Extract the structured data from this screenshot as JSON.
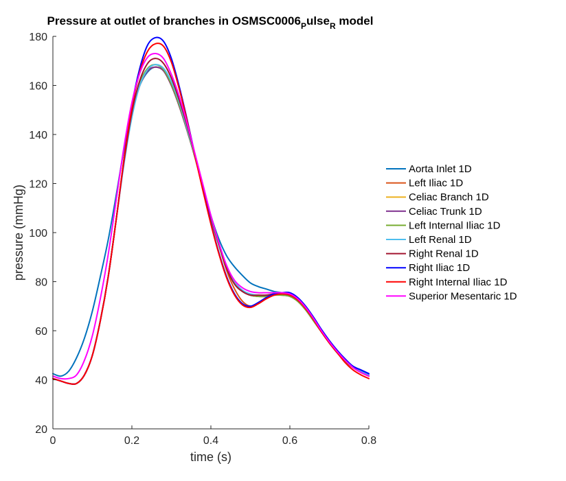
{
  "chart_data": {
    "type": "line",
    "title": {
      "main_before": "Pressure at outlet of branches in OSMSC0006",
      "sub1": "P",
      "mid": "ulse",
      "sub2": "R",
      "after": " model"
    },
    "xlabel": "time (s)",
    "ylabel": "pressure (mmHg)",
    "xlim": [
      0,
      0.8
    ],
    "ylim": [
      20,
      180
    ],
    "xticks": [
      0,
      0.2,
      0.4,
      0.6,
      0.8
    ],
    "xtick_labels": [
      "0",
      "0.2",
      "0.4",
      "0.6",
      "0.8"
    ],
    "yticks": [
      20,
      40,
      60,
      80,
      100,
      120,
      140,
      160,
      180
    ],
    "ytick_labels": [
      "20",
      "40",
      "60",
      "80",
      "100",
      "120",
      "140",
      "160",
      "180"
    ],
    "grid": false,
    "legend_position": "outside-right",
    "x": [
      0,
      0.02,
      0.04,
      0.06,
      0.08,
      0.1,
      0.12,
      0.14,
      0.16,
      0.18,
      0.2,
      0.22,
      0.24,
      0.26,
      0.28,
      0.3,
      0.32,
      0.34,
      0.36,
      0.38,
      0.4,
      0.42,
      0.44,
      0.46,
      0.48,
      0.5,
      0.52,
      0.54,
      0.56,
      0.58,
      0.6,
      0.62,
      0.64,
      0.66,
      0.68,
      0.7,
      0.72,
      0.74,
      0.76,
      0.78,
      0.8
    ],
    "series": [
      {
        "name": "Aorta Inlet 1D",
        "color": "#0072BD",
        "values": [
          42.5,
          41.5,
          43.5,
          49,
          57,
          68,
          82,
          97,
          115,
          134,
          150,
          160,
          165.5,
          167.5,
          166,
          161,
          153,
          143,
          131.5,
          119,
          107,
          97.5,
          90.5,
          86,
          82.5,
          79.5,
          78,
          77,
          76,
          75.5,
          74.5,
          72.5,
          69,
          64.5,
          59.5,
          55,
          51,
          48,
          45.5,
          44,
          42.5
        ]
      },
      {
        "name": "Left Iliac 1D",
        "color": "#D95319",
        "values": [
          40.5,
          39.5,
          38.5,
          38.5,
          42,
          50,
          64,
          82,
          105,
          129,
          148,
          160,
          166,
          167.5,
          166,
          160,
          151.5,
          141.5,
          130.5,
          118.5,
          106,
          95,
          84.5,
          77,
          72,
          70,
          71,
          73,
          74.5,
          75,
          74.5,
          72.5,
          69,
          64.5,
          59.5,
          55,
          51,
          47.5,
          45,
          43,
          41.5
        ]
      },
      {
        "name": "Celiac Branch 1D",
        "color": "#EDB120",
        "values": [
          40.5,
          39.5,
          38.5,
          38.5,
          42,
          50,
          64,
          82,
          105,
          129,
          148,
          160,
          166,
          167.5,
          166,
          160,
          151.5,
          141.5,
          130.5,
          118.5,
          106,
          95,
          85.5,
          79,
          76,
          74.5,
          74,
          74,
          74.5,
          74.5,
          74,
          72,
          68.5,
          64,
          59.5,
          55,
          51,
          47.5,
          45,
          43,
          41.5
        ]
      },
      {
        "name": "Celiac Trunk 1D",
        "color": "#7E2F8E",
        "values": [
          40.5,
          39.5,
          38.5,
          38.5,
          42,
          50,
          64,
          82,
          105,
          129,
          148,
          160,
          166,
          167.5,
          166,
          160,
          151.5,
          141.5,
          130.5,
          118.5,
          106,
          95,
          85.5,
          79,
          76,
          74.5,
          74,
          74,
          74.5,
          74.5,
          74,
          72,
          68.5,
          64,
          59.5,
          55,
          51,
          47.5,
          45,
          43,
          41.5
        ]
      },
      {
        "name": "Left Internal Iliac 1D",
        "color": "#77AC30",
        "values": [
          40.5,
          39.5,
          38.5,
          38.5,
          42,
          50,
          64,
          82,
          105,
          129,
          148,
          161,
          167,
          168.5,
          166.5,
          160.5,
          152,
          142,
          130.5,
          118.5,
          106,
          95,
          85.5,
          79,
          76,
          74.5,
          74,
          74,
          74.5,
          74.5,
          74,
          72,
          68.5,
          64,
          59.5,
          55,
          51,
          47.5,
          45,
          43,
          41.5
        ]
      },
      {
        "name": "Left Renal 1D",
        "color": "#4DBEEE",
        "values": [
          40.5,
          39.5,
          38.5,
          38.5,
          42,
          50,
          64,
          82,
          105,
          128,
          147,
          160,
          166.5,
          168.5,
          167,
          161.5,
          153,
          142.5,
          131,
          119,
          106.5,
          95.5,
          86.5,
          80,
          76.5,
          75,
          74.5,
          74.5,
          75,
          75,
          74.5,
          72.5,
          69,
          64.5,
          60,
          55.5,
          51.5,
          48,
          45.5,
          43.5,
          42
        ]
      },
      {
        "name": "Right Renal 1D",
        "color": "#A2142F",
        "values": [
          40.5,
          39.5,
          38.5,
          38.5,
          42,
          50,
          64,
          82,
          105,
          129,
          149,
          162,
          169,
          171,
          169,
          163,
          154,
          143.5,
          131.5,
          119,
          106.5,
          95.5,
          85.5,
          79,
          76,
          74.5,
          74.5,
          74.5,
          75,
          75.5,
          75,
          73,
          69.5,
          65,
          60,
          55.5,
          51.5,
          48,
          45,
          43,
          41.5
        ]
      },
      {
        "name": "Right Iliac 1D",
        "color": "#0000FF",
        "values": [
          40.5,
          39.5,
          38.5,
          38.5,
          42,
          50,
          64,
          82,
          105,
          130,
          152,
          167,
          176.5,
          179.5,
          178,
          171,
          159.5,
          146,
          131.5,
          117.5,
          104,
          92,
          82,
          75,
          71,
          70,
          71.5,
          73.5,
          75,
          75.5,
          75.5,
          73.5,
          70,
          65.5,
          60.5,
          56,
          52,
          48.5,
          45.5,
          44,
          42.5
        ]
      },
      {
        "name": "Right Internal Iliac 1D",
        "color": "#FF0000",
        "values": [
          40.5,
          39.5,
          38.5,
          38.5,
          42,
          50,
          64,
          82,
          105,
          130,
          151,
          165.5,
          174,
          177,
          176,
          169.5,
          158.5,
          145.5,
          131,
          117,
          103.5,
          91.5,
          81.5,
          74.5,
          70.5,
          69.5,
          71,
          73,
          74.5,
          75,
          74.5,
          72.5,
          69,
          64.5,
          59.5,
          55,
          51,
          47,
          44,
          42,
          40.5
        ]
      },
      {
        "name": "Superior Mesentaric 1D",
        "color": "#FF00FF",
        "values": [
          41.5,
          40.5,
          40.5,
          42,
          48,
          58,
          73,
          91,
          113,
          135,
          153,
          165,
          171.5,
          173,
          171,
          164.5,
          155.5,
          144.5,
          132,
          119.5,
          107,
          96,
          86.5,
          80.5,
          77.5,
          76,
          75.5,
          75.5,
          75.5,
          75.5,
          75,
          73,
          69.5,
          65,
          60,
          55.5,
          51.5,
          48,
          45,
          43,
          41.5
        ]
      }
    ]
  }
}
